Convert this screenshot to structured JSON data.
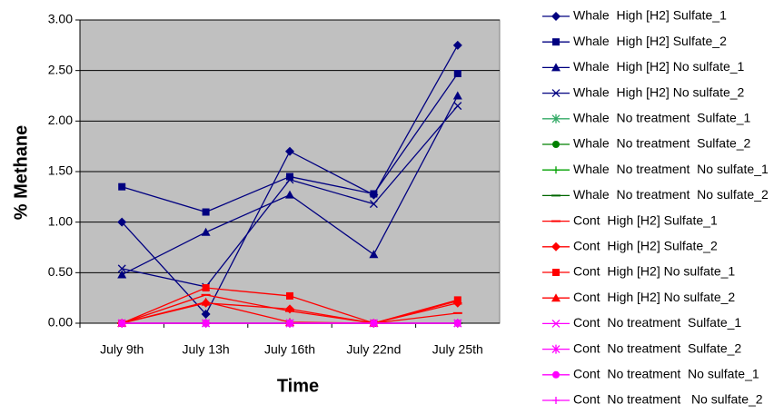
{
  "chart_data": {
    "type": "line",
    "y_label": "% Methane",
    "x_label": "Time",
    "categories": [
      "July 9th",
      "July 13h",
      "July 16th",
      "July 22nd",
      "July 25th"
    ],
    "ylim": [
      0,
      3
    ],
    "yticks": [
      {
        "value": 0,
        "label": "0.00"
      },
      {
        "value": 0.5,
        "label": "0.50"
      },
      {
        "value": 1,
        "label": "1.00"
      },
      {
        "value": 1.5,
        "label": "1.50"
      },
      {
        "value": 2,
        "label": "2.00"
      },
      {
        "value": 2.5,
        "label": "2.50"
      },
      {
        "value": 3,
        "label": "3.00"
      }
    ],
    "grid": true,
    "background": "#c0c0c0",
    "legend": "right",
    "series": [
      {
        "name": "Whale  High [H2] Sulfate_1",
        "color": "#000080",
        "marker": "diamond",
        "values": [
          1.0,
          0.09,
          1.7,
          1.27,
          2.75
        ]
      },
      {
        "name": "Whale  High [H2] Sulfate_2",
        "color": "#000080",
        "marker": "square",
        "values": [
          1.35,
          1.1,
          1.45,
          1.28,
          2.47
        ]
      },
      {
        "name": "Whale  High [H2] No sulfate_1",
        "color": "#000080",
        "marker": "triangle",
        "values": [
          0.48,
          0.9,
          1.27,
          0.68,
          2.25
        ]
      },
      {
        "name": "Whale  High [H2] No sulfate_2",
        "color": "#000080",
        "marker": "x",
        "values": [
          0.54,
          0.36,
          1.42,
          1.18,
          2.15
        ]
      },
      {
        "name": "Whale  No treatment  Sulfate_1",
        "color": "#33aa66",
        "marker": "asterisk",
        "values": [
          0,
          0,
          0,
          0,
          0
        ]
      },
      {
        "name": "Whale  No treatment  Sulfate_2",
        "color": "#008000",
        "marker": "circle",
        "values": [
          0,
          0,
          0,
          0,
          0
        ]
      },
      {
        "name": "Whale  No treatment  No sulfate_1",
        "color": "#00a000",
        "marker": "plus",
        "values": [
          0,
          0,
          0,
          0,
          0
        ]
      },
      {
        "name": "Whale  No treatment  No sulfate_2",
        "color": "#006600",
        "marker": "dash",
        "values": [
          0,
          0,
          0,
          0,
          0
        ]
      },
      {
        "name": "Cont  High [H2] Sulfate_1",
        "color": "#ff0000",
        "marker": "dash",
        "values": [
          0,
          0.28,
          0.12,
          0,
          0.1
        ]
      },
      {
        "name": "Cont  High [H2] Sulfate_2",
        "color": "#ff0000",
        "marker": "diamond",
        "values": [
          0,
          0.2,
          0.14,
          0,
          0.2
        ]
      },
      {
        "name": "Cont  High [H2] No sulfate_1",
        "color": "#ff0000",
        "marker": "square",
        "values": [
          0,
          0.35,
          0.27,
          0,
          0.23
        ]
      },
      {
        "name": "Cont  High [H2] No sulfate_2",
        "color": "#ff0000",
        "marker": "triangle",
        "values": [
          0,
          0.21,
          0.01,
          0,
          0.22
        ]
      },
      {
        "name": "Cont  No treatment  Sulfate_1",
        "color": "#ff00ff",
        "marker": "x",
        "values": [
          0,
          0,
          0,
          0,
          0
        ]
      },
      {
        "name": "Cont  No treatment  Sulfate_2",
        "color": "#ff00ff",
        "marker": "asterisk",
        "values": [
          0,
          0,
          0,
          0,
          0
        ]
      },
      {
        "name": "Cont  No treatment  No sulfate_1",
        "color": "#ff00ff",
        "marker": "circle",
        "values": [
          0,
          0,
          0,
          0,
          0
        ]
      },
      {
        "name": "Cont  No treatment   No sulfate_2",
        "color": "#ff00ff",
        "marker": "plus",
        "values": [
          0,
          0,
          0,
          0,
          0
        ]
      }
    ]
  }
}
